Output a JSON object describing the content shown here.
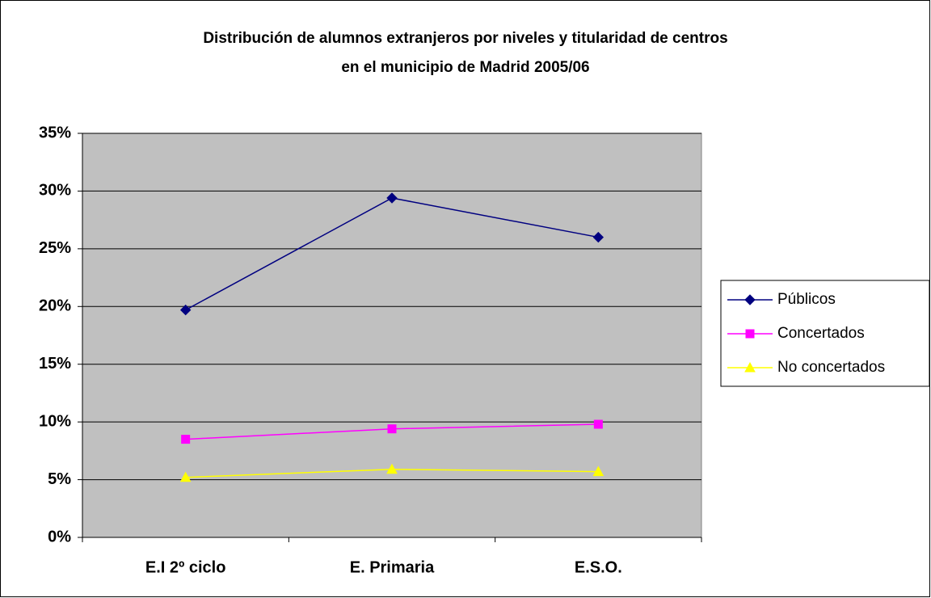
{
  "chart_data": {
    "type": "line",
    "title": [
      "Distribución de alumnos extranjeros por niveles y titularidad de centros",
      "en el municipio de Madrid 2005/06"
    ],
    "categories": [
      "E.I 2º ciclo",
      "E. Primaria",
      "E.S.O."
    ],
    "series": [
      {
        "name": "Públicos",
        "color": "#000080",
        "marker": "diamond",
        "values": [
          19.7,
          29.4,
          26.0
        ]
      },
      {
        "name": "Concertados",
        "color": "#FF00FF",
        "marker": "square",
        "values": [
          8.5,
          9.4,
          9.8
        ]
      },
      {
        "name": "No concertados",
        "color": "#FFFF00",
        "marker": "triangle",
        "values": [
          5.2,
          5.9,
          5.7
        ]
      }
    ],
    "ylim": [
      0,
      35
    ],
    "yticks": [
      {
        "value": 0,
        "label": "0%"
      },
      {
        "value": 5,
        "label": "5%"
      },
      {
        "value": 10,
        "label": "10%"
      },
      {
        "value": 15,
        "label": "15%"
      },
      {
        "value": 20,
        "label": "20%"
      },
      {
        "value": 25,
        "label": "25%"
      },
      {
        "value": 30,
        "label": "30%"
      },
      {
        "value": 35,
        "label": "35%"
      }
    ],
    "grid": true,
    "legend": "right",
    "plot_background": "#C0C0C0"
  }
}
